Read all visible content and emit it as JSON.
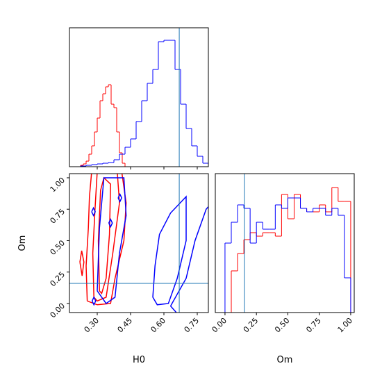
{
  "chart_data": [
    {
      "type": "histogram",
      "xlim": [
        0.175,
        0.8
      ],
      "ylim": [
        0,
        200
      ],
      "xticks": [
        {
          "value": 0.3,
          "label": "0.30"
        },
        0.45,
        {
          "value": 0.6,
          "label": "0.60"
        },
        0.75
      ],
      "show_xtick_labels": false,
      "truth_x": 0.669,
      "truth_color": "#1f77b4",
      "series": [
        {
          "color": "#ff0000",
          "bins": [
            0.225,
            0.2375,
            0.25,
            0.2625,
            0.275,
            0.2875,
            0.3,
            0.3125,
            0.325,
            0.3375,
            0.35,
            0.3625,
            0.375,
            0.3875,
            0.4,
            0.4125,
            0.425
          ],
          "values": [
            2,
            4,
            8,
            18,
            30,
            50,
            70,
            95,
            105,
            115,
            118,
            90,
            85,
            50,
            20,
            5
          ]
        },
        {
          "color": "#0000ff",
          "bins": [
            0.175,
            0.2,
            0.225,
            0.25,
            0.275,
            0.3,
            0.325,
            0.35,
            0.375,
            0.4,
            0.425,
            0.45,
            0.475,
            0.5,
            0.525,
            0.55,
            0.575,
            0.6,
            0.625,
            0.65,
            0.675,
            0.7,
            0.725,
            0.75,
            0.775,
            0.8
          ],
          "values": [
            0,
            0,
            1,
            2,
            3,
            4,
            5,
            6,
            10,
            18,
            28,
            40,
            65,
            95,
            120,
            140,
            180,
            182,
            182,
            140,
            90,
            55,
            30,
            15,
            5
          ]
        }
      ]
    },
    {
      "type": "contour",
      "xlabel": "H0",
      "ylabel": "Om",
      "xlim": [
        0.175,
        0.8
      ],
      "ylim": [
        -0.072,
        1.033
      ],
      "xticks": [
        {
          "value": 0.3,
          "label": "0.30"
        },
        0.45,
        {
          "value": 0.6,
          "label": "0.60"
        },
        0.75
      ],
      "yticks": [
        {
          "value": 0,
          "label": "0.00"
        },
        0.25,
        {
          "value": 0.5,
          "label": "0.50"
        },
        0.75,
        {
          "value": 1,
          "label": "1.00"
        }
      ],
      "truth_x": 0.669,
      "truth_y": 0.16,
      "truth_color": "#1f77b4",
      "contours": [
        {
          "color": "#ff0000",
          "x": [
            0.255,
            0.25,
            0.26,
            0.265,
            0.275,
            0.41,
            0.43,
            0.42,
            0.38,
            0.36,
            0.3,
            0.255
          ],
          "y": [
            0.02,
            0.3,
            0.6,
            0.85,
            1.05,
            1.05,
            0.8,
            0.5,
            0.2,
            0.0,
            -0.01,
            0.02
          ]
        },
        {
          "color": "#ff0000",
          "x": [
            0.285,
            0.28,
            0.29,
            0.3,
            0.39,
            0.4,
            0.37,
            0.34,
            0.3,
            0.285
          ],
          "y": [
            0.05,
            0.4,
            0.75,
            1.05,
            1.05,
            0.8,
            0.4,
            0.05,
            0.02,
            0.05
          ]
        },
        {
          "color": "#ff0000",
          "x": [
            0.31,
            0.305,
            0.315,
            0.33,
            0.36,
            0.355,
            0.34,
            0.32,
            0.31
          ],
          "y": [
            0.1,
            0.5,
            0.9,
            1.0,
            0.95,
            0.55,
            0.2,
            0.08,
            0.1
          ]
        },
        {
          "color": "#ff0000",
          "x": [
            0.222,
            0.23,
            0.24,
            0.232,
            0.222
          ],
          "y": [
            0.33,
            0.42,
            0.33,
            0.22,
            0.33
          ]
        },
        {
          "color": "#0000ff",
          "x": [
            0.3,
            0.31,
            0.33,
            0.42,
            0.43,
            0.4,
            0.38,
            0.34,
            0.3
          ],
          "y": [
            0.1,
            0.6,
            1.0,
            1.0,
            0.7,
            0.4,
            0.05,
            0.0,
            0.1
          ]
        },
        {
          "color": "#0000ff",
          "x": [
            0.55,
            0.56,
            0.58,
            0.63,
            0.7,
            0.7,
            0.66,
            0.62,
            0.57,
            0.55
          ],
          "y": [
            0.05,
            0.3,
            0.55,
            0.72,
            0.85,
            0.5,
            0.2,
            0.0,
            -0.01,
            0.05
          ]
        },
        {
          "color": "#0000ff",
          "x": [
            0.63,
            0.7,
            0.74,
            0.79,
            0.82,
            0.82,
            0.72,
            0.66,
            0.63
          ],
          "y": [
            -0.02,
            0.2,
            0.5,
            0.75,
            0.81,
            -0.1,
            -0.1,
            -0.08,
            -0.02
          ]
        },
        {
          "color": "#0000ff",
          "x": [
            0.275,
            0.283,
            0.291,
            0.283,
            0.275
          ],
          "y": [
            0.73,
            0.76,
            0.73,
            0.7,
            0.73
          ]
        },
        {
          "color": "#0000ff",
          "x": [
            0.352,
            0.36,
            0.368,
            0.36,
            0.352
          ],
          "y": [
            0.64,
            0.67,
            0.64,
            0.61,
            0.64
          ]
        },
        {
          "color": "#0000ff",
          "x": [
            0.277,
            0.285,
            0.293,
            0.285,
            0.277
          ],
          "y": [
            0.02,
            0.05,
            0.02,
            -0.01,
            0.02
          ]
        },
        {
          "color": "#0000ff",
          "x": [
            0.394,
            0.402,
            0.41,
            0.402,
            0.394
          ],
          "y": [
            0.84,
            0.87,
            0.84,
            0.81,
            0.84
          ]
        }
      ]
    },
    {
      "type": "histogram",
      "xlabel": "Om",
      "xlim": [
        -0.077,
        1.028
      ],
      "ylim": [
        0,
        200
      ],
      "xticks": [
        {
          "value": 0,
          "label": "0.00"
        },
        0.25,
        {
          "value": 0.5,
          "label": "0.50"
        },
        0.75,
        {
          "value": 1,
          "label": "1.00"
        }
      ],
      "show_xtick_labels": true,
      "truth_x": 0.155,
      "truth_color": "#1f77b4",
      "series": [
        {
          "color": "#ff0000",
          "bins": [
            0,
            0.05,
            0.1,
            0.15,
            0.2,
            0.25,
            0.3,
            0.35,
            0.4,
            0.45,
            0.5,
            0.55,
            0.6,
            0.65,
            0.7,
            0.75,
            0.8,
            0.85,
            0.9,
            0.95,
            1.0
          ],
          "values": [
            0,
            60,
            85,
            105,
            115,
            110,
            115,
            115,
            110,
            170,
            135,
            170,
            150,
            145,
            145,
            155,
            145,
            180,
            160,
            160
          ]
        },
        {
          "color": "#0000ff",
          "bins": [
            0,
            0.05,
            0.1,
            0.15,
            0.2,
            0.25,
            0.3,
            0.35,
            0.4,
            0.45,
            0.5,
            0.55,
            0.6,
            0.65,
            0.7,
            0.75,
            0.8,
            0.85,
            0.9,
            0.95,
            1.0
          ],
          "values": [
            100,
            130,
            155,
            150,
            100,
            130,
            120,
            120,
            155,
            150,
            165,
            165,
            150,
            145,
            150,
            150,
            140,
            150,
            140,
            50
          ]
        }
      ]
    }
  ]
}
